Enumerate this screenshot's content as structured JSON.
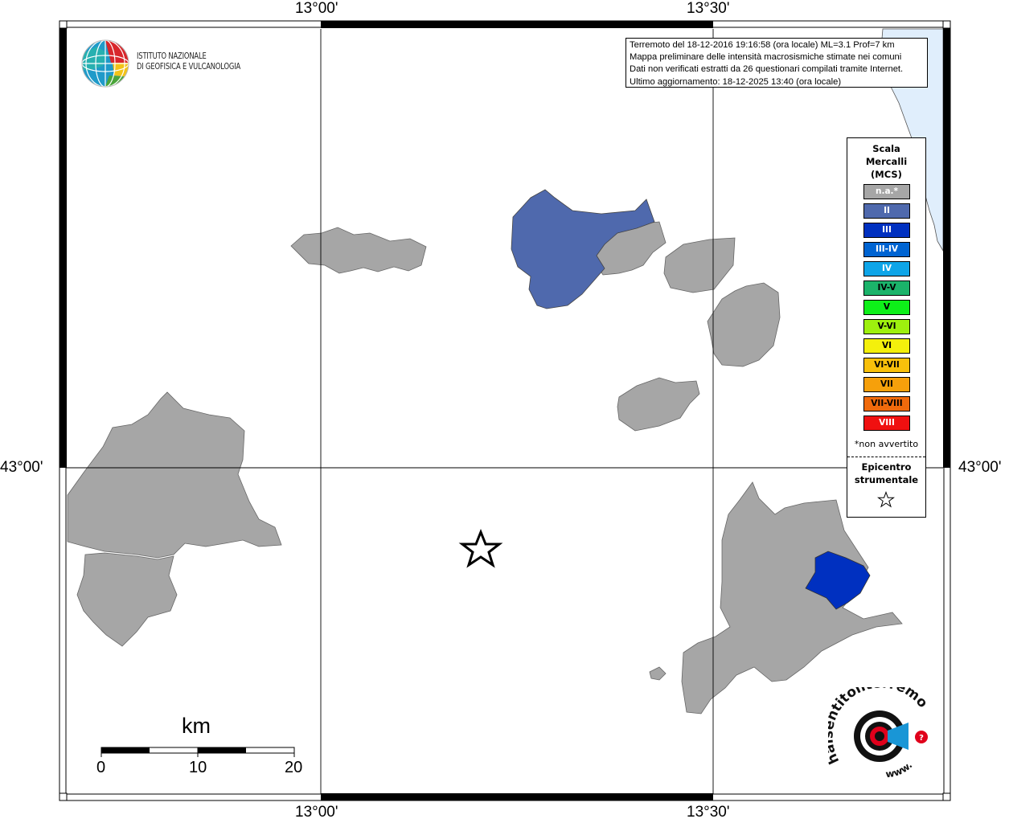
{
  "map": {
    "lon_labels": [
      "13°00'",
      "13°30'"
    ],
    "lat_label": "43°00'",
    "colors": {
      "not_felt": "#a6a6a6",
      "intensity_II": "#4f69ad",
      "intensity_III": "#0030c0",
      "sea": "#e0eefc",
      "frame": "#000000"
    }
  },
  "institute_logo": {
    "icon": "ingv-globe-icon",
    "line1": "ISTITUTO NAZIONALE",
    "line2": "DI GEOFISICA E VULCANOLOGIA"
  },
  "info": {
    "line1": "Terremoto del 18-12-2016 19:16:58 (ora locale) ML=3.1 Prof=7 km",
    "line2": "Mappa preliminare delle intensità macrosismiche stimate nei comuni",
    "line3": "Dati non verificati estratti da 26 questionari compilati tramite Internet.",
    "line4": "Ultimo aggiornamento: 18-12-2025 13:40 (ora locale)"
  },
  "legend": {
    "title": "Scala\nMercalli\n(MCS)",
    "items": [
      {
        "label": "n.a.*",
        "color": "#a6a6a6"
      },
      {
        "label": "II",
        "color": "#4f69ad"
      },
      {
        "label": "III",
        "color": "#0030c0"
      },
      {
        "label": "III-IV",
        "color": "#0064d2"
      },
      {
        "label": "IV",
        "color": "#0ea5e8"
      },
      {
        "label": "IV-V",
        "color": "#1bb36a"
      },
      {
        "label": "V",
        "color": "#0ef019"
      },
      {
        "label": "V-VI",
        "color": "#9ef00e"
      },
      {
        "label": "VI",
        "color": "#f4f00c"
      },
      {
        "label": "VI-VII",
        "color": "#f8c00b"
      },
      {
        "label": "VII",
        "color": "#f6a00b"
      },
      {
        "label": "VII-VIII",
        "color": "#f06a0c"
      },
      {
        "label": "VIII",
        "color": "#f01010"
      }
    ],
    "note": "*non avvertito",
    "epicenter_label": "Epicentro\nstrumentale"
  },
  "scale_bar": {
    "unit": "km",
    "ticks": [
      "0",
      "10",
      "20"
    ]
  },
  "footer_logo": {
    "icon": "haisentito-logo-icon",
    "text": "haisentitoilterremoto.it",
    "url_text": "www."
  }
}
